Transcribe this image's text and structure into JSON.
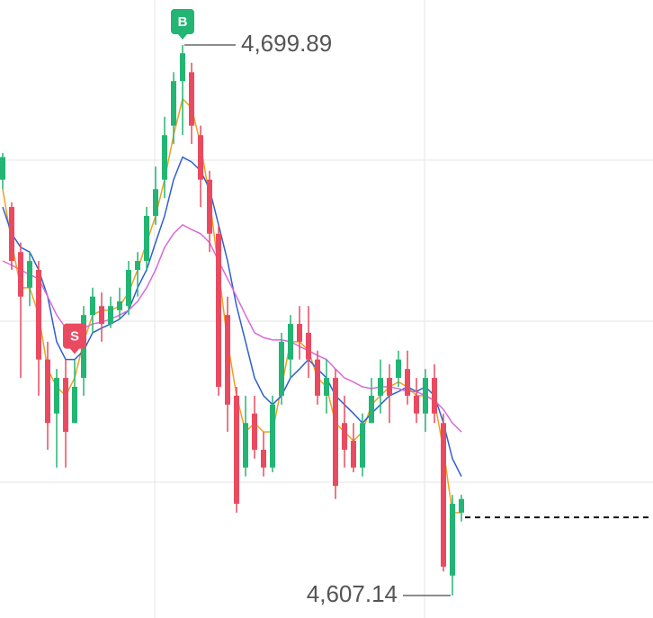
{
  "chart_data": {
    "type": "candlestick",
    "ylim": [
      4603.35,
      4707.47
    ],
    "up_color": "#22b573",
    "down_color": "#ea4a5f",
    "open": [
      4677.2,
      4672.6,
      4665.0,
      4659.0,
      4662.0,
      4646.9,
      4637.8,
      4643.8,
      4636.2,
      4643.8,
      4654.4,
      4655.9,
      4652.9,
      4655.2,
      4655.9,
      4662.0,
      4663.5,
      4671.1,
      4677.2,
      4686.3,
      4693.8,
      4695.3,
      4684.7,
      4677.2,
      4668.1,
      4654.4,
      4640.8,
      4628.7,
      4637.8,
      4631.7,
      4628.7,
      4640.8,
      4646.9,
      4652.9,
      4651.4,
      4646.9,
      4640.8,
      4643.8,
      4636.2,
      4633.2,
      4628.7,
      4636.2,
      4640.8,
      4643.8,
      4643.8,
      4645.3,
      4640.8,
      4637.8,
      4643.8,
      4636.2,
      4610.5,
      4621.1
    ],
    "high": [
      4681.7,
      4673.4,
      4666.6,
      4665.0,
      4663.5,
      4649.9,
      4645.3,
      4646.9,
      4646.9,
      4655.9,
      4659.0,
      4658.2,
      4657.5,
      4659.0,
      4663.5,
      4665.0,
      4672.6,
      4679.4,
      4687.8,
      4695.3,
      4699.89,
      4696.9,
      4686.3,
      4678.7,
      4669.6,
      4657.5,
      4642.3,
      4640.8,
      4640.8,
      4634.7,
      4640.8,
      4651.4,
      4654.4,
      4655.9,
      4655.9,
      4648.4,
      4646.9,
      4645.3,
      4640.8,
      4636.2,
      4637.8,
      4643.8,
      4646.9,
      4646.1,
      4648.4,
      4648.4,
      4643.8,
      4645.3,
      4646.1,
      4637.8,
      4624.1,
      4624.1
    ],
    "low": [
      4675.6,
      4662.0,
      4643.8,
      4655.9,
      4640.8,
      4631.7,
      4628.7,
      4628.7,
      4636.2,
      4640.8,
      4651.4,
      4649.9,
      4652.2,
      4653.7,
      4654.4,
      4657.5,
      4662.0,
      4669.6,
      4674.1,
      4683.2,
      4684.7,
      4683.2,
      4672.6,
      4665.0,
      4640.8,
      4634.7,
      4621.1,
      4627.2,
      4630.2,
      4627.2,
      4627.9,
      4639.3,
      4643.8,
      4646.9,
      4643.8,
      4639.3,
      4637.8,
      4623.4,
      4628.7,
      4627.9,
      4627.2,
      4636.2,
      4637.8,
      4636.2,
      4642.3,
      4639.3,
      4636.2,
      4634.7,
      4636.2,
      4611.2,
      4607.14,
      4619.6
    ],
    "close": [
      4681.0,
      4663.5,
      4657.5,
      4663.5,
      4646.9,
      4636.2,
      4643.8,
      4634.7,
      4642.3,
      4654.4,
      4657.5,
      4652.9,
      4655.9,
      4656.7,
      4662.0,
      4663.5,
      4671.1,
      4675.6,
      4684.7,
      4693.8,
      4698.5,
      4686.3,
      4677.2,
      4668.1,
      4642.3,
      4639.3,
      4622.6,
      4636.2,
      4631.7,
      4628.7,
      4639.3,
      4649.9,
      4652.9,
      4649.9,
      4646.9,
      4640.8,
      4643.8,
      4625.6,
      4631.7,
      4628.7,
      4636.2,
      4640.8,
      4643.8,
      4640.8,
      4646.9,
      4640.8,
      4637.8,
      4643.8,
      4637.8,
      4612.0,
      4622.6,
      4623.4
    ],
    "ma_lines": [
      {
        "color": "#f0a020",
        "values": [
          4675.6,
          4666.6,
          4659.0,
          4659.0,
          4654.4,
          4645.3,
          4642.3,
          4640.8,
          4643.8,
          4649.9,
          4654.4,
          4655.2,
          4655.2,
          4655.9,
          4658.2,
          4662.0,
          4666.6,
          4671.1,
          4677.2,
          4684.7,
          4690.8,
          4689.3,
          4683.2,
          4674.1,
          4662.0,
          4649.9,
          4640.8,
          4634.7,
          4636.2,
          4634.7,
          4634.7,
          4642.3,
          4649.9,
          4649.9,
          4648.4,
          4643.8,
          4642.3,
          4636.2,
          4634.7,
          4633.2,
          4634.7,
          4639.3,
          4640.8,
          4642.3,
          4643.1,
          4642.3,
          4640.8,
          4640.8,
          4640.0,
          4631.7,
          4621.1,
          4621.1
        ]
      },
      {
        "color": "#2f5fd0",
        "values": [
          4672.6,
          4668.1,
          4665.8,
          4665.0,
          4662.0,
          4657.5,
          4649.9,
          4646.9,
          4646.9,
          4648.4,
          4651.4,
          4652.2,
          4652.9,
          4653.7,
          4655.2,
          4659.0,
          4662.0,
          4666.6,
          4671.1,
          4677.2,
          4681.0,
          4680.2,
          4678.7,
          4675.6,
          4669.6,
          4663.5,
          4655.9,
          4649.9,
          4643.8,
          4640.8,
          4639.3,
          4640.8,
          4643.8,
          4645.3,
          4646.9,
          4645.3,
          4643.8,
          4640.8,
          4639.3,
          4637.8,
          4636.2,
          4637.8,
          4639.3,
          4640.8,
          4641.5,
          4642.3,
          4641.5,
          4642.3,
          4640.8,
          4636.2,
          4630.2,
          4627.2
        ]
      },
      {
        "color": "#d86ad8",
        "values": [
          4663.5,
          4662.8,
          4662.0,
          4661.2,
          4660.5,
          4657.5,
          4654.4,
          4652.2,
          4651.4,
          4652.2,
          4652.9,
          4653.2,
          4653.7,
          4654.4,
          4655.2,
          4656.7,
          4659.0,
          4662.0,
          4665.8,
          4668.1,
          4669.6,
          4668.8,
          4668.1,
          4666.6,
          4663.5,
          4660.5,
          4657.5,
          4654.4,
          4651.4,
          4650.6,
          4650.2,
          4650.2,
          4649.9,
          4649.1,
          4648.4,
          4647.6,
          4646.9,
          4645.3,
          4643.8,
          4643.1,
          4642.3,
          4642.0,
          4642.3,
          4642.3,
          4642.0,
          4641.5,
          4641.5,
          4640.8,
          4640.0,
          4638.5,
          4636.2,
          4634.7
        ]
      }
    ],
    "markers": [
      {
        "label": "B",
        "index": 20,
        "color": "#22b573"
      },
      {
        "label": "S",
        "index": 8,
        "color": "#ea4a5f"
      }
    ],
    "extremes": {
      "high": {
        "value": 4699.89,
        "label": "4,699.89"
      },
      "low": {
        "value": 4607.14,
        "label": "4,607.14"
      }
    },
    "current_price": 4620.3
  }
}
